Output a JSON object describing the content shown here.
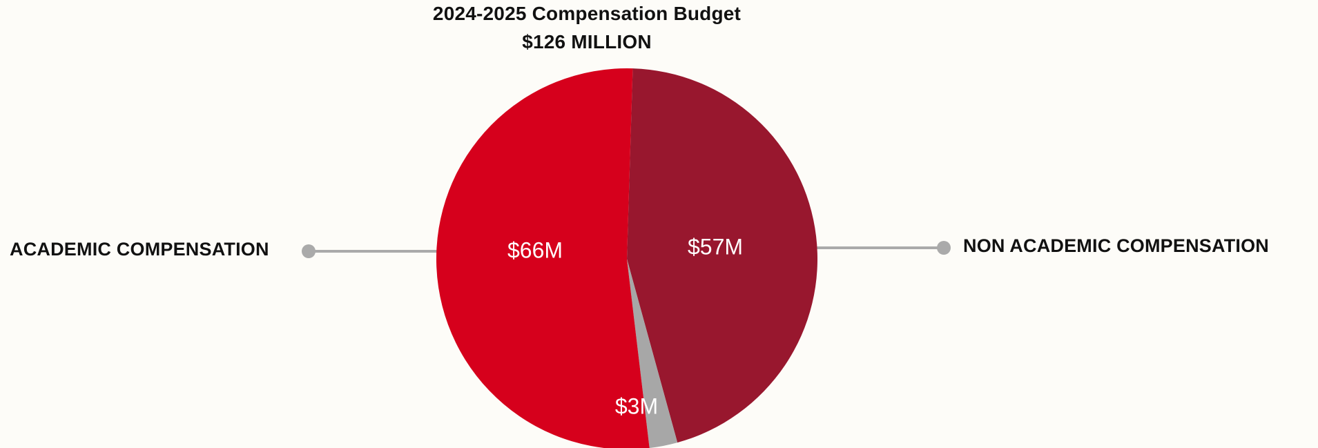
{
  "chart_data": {
    "type": "pie",
    "title": "2024-2025 Compensation Budget",
    "subtitle": "$126 MILLION",
    "slices": [
      {
        "name": "ACADEMIC COMPENSATION",
        "value": 66,
        "label": "$66M",
        "color": "#d6001c"
      },
      {
        "name": "NON ACADEMIC COMPENSATION",
        "value": 57,
        "label": "$57M",
        "color": "#98172e"
      },
      {
        "name": "",
        "value": 3,
        "label": "$3M",
        "color": "#a7a7a7"
      }
    ],
    "legend": "callout lines",
    "connector_color": "#aaaaaa"
  }
}
